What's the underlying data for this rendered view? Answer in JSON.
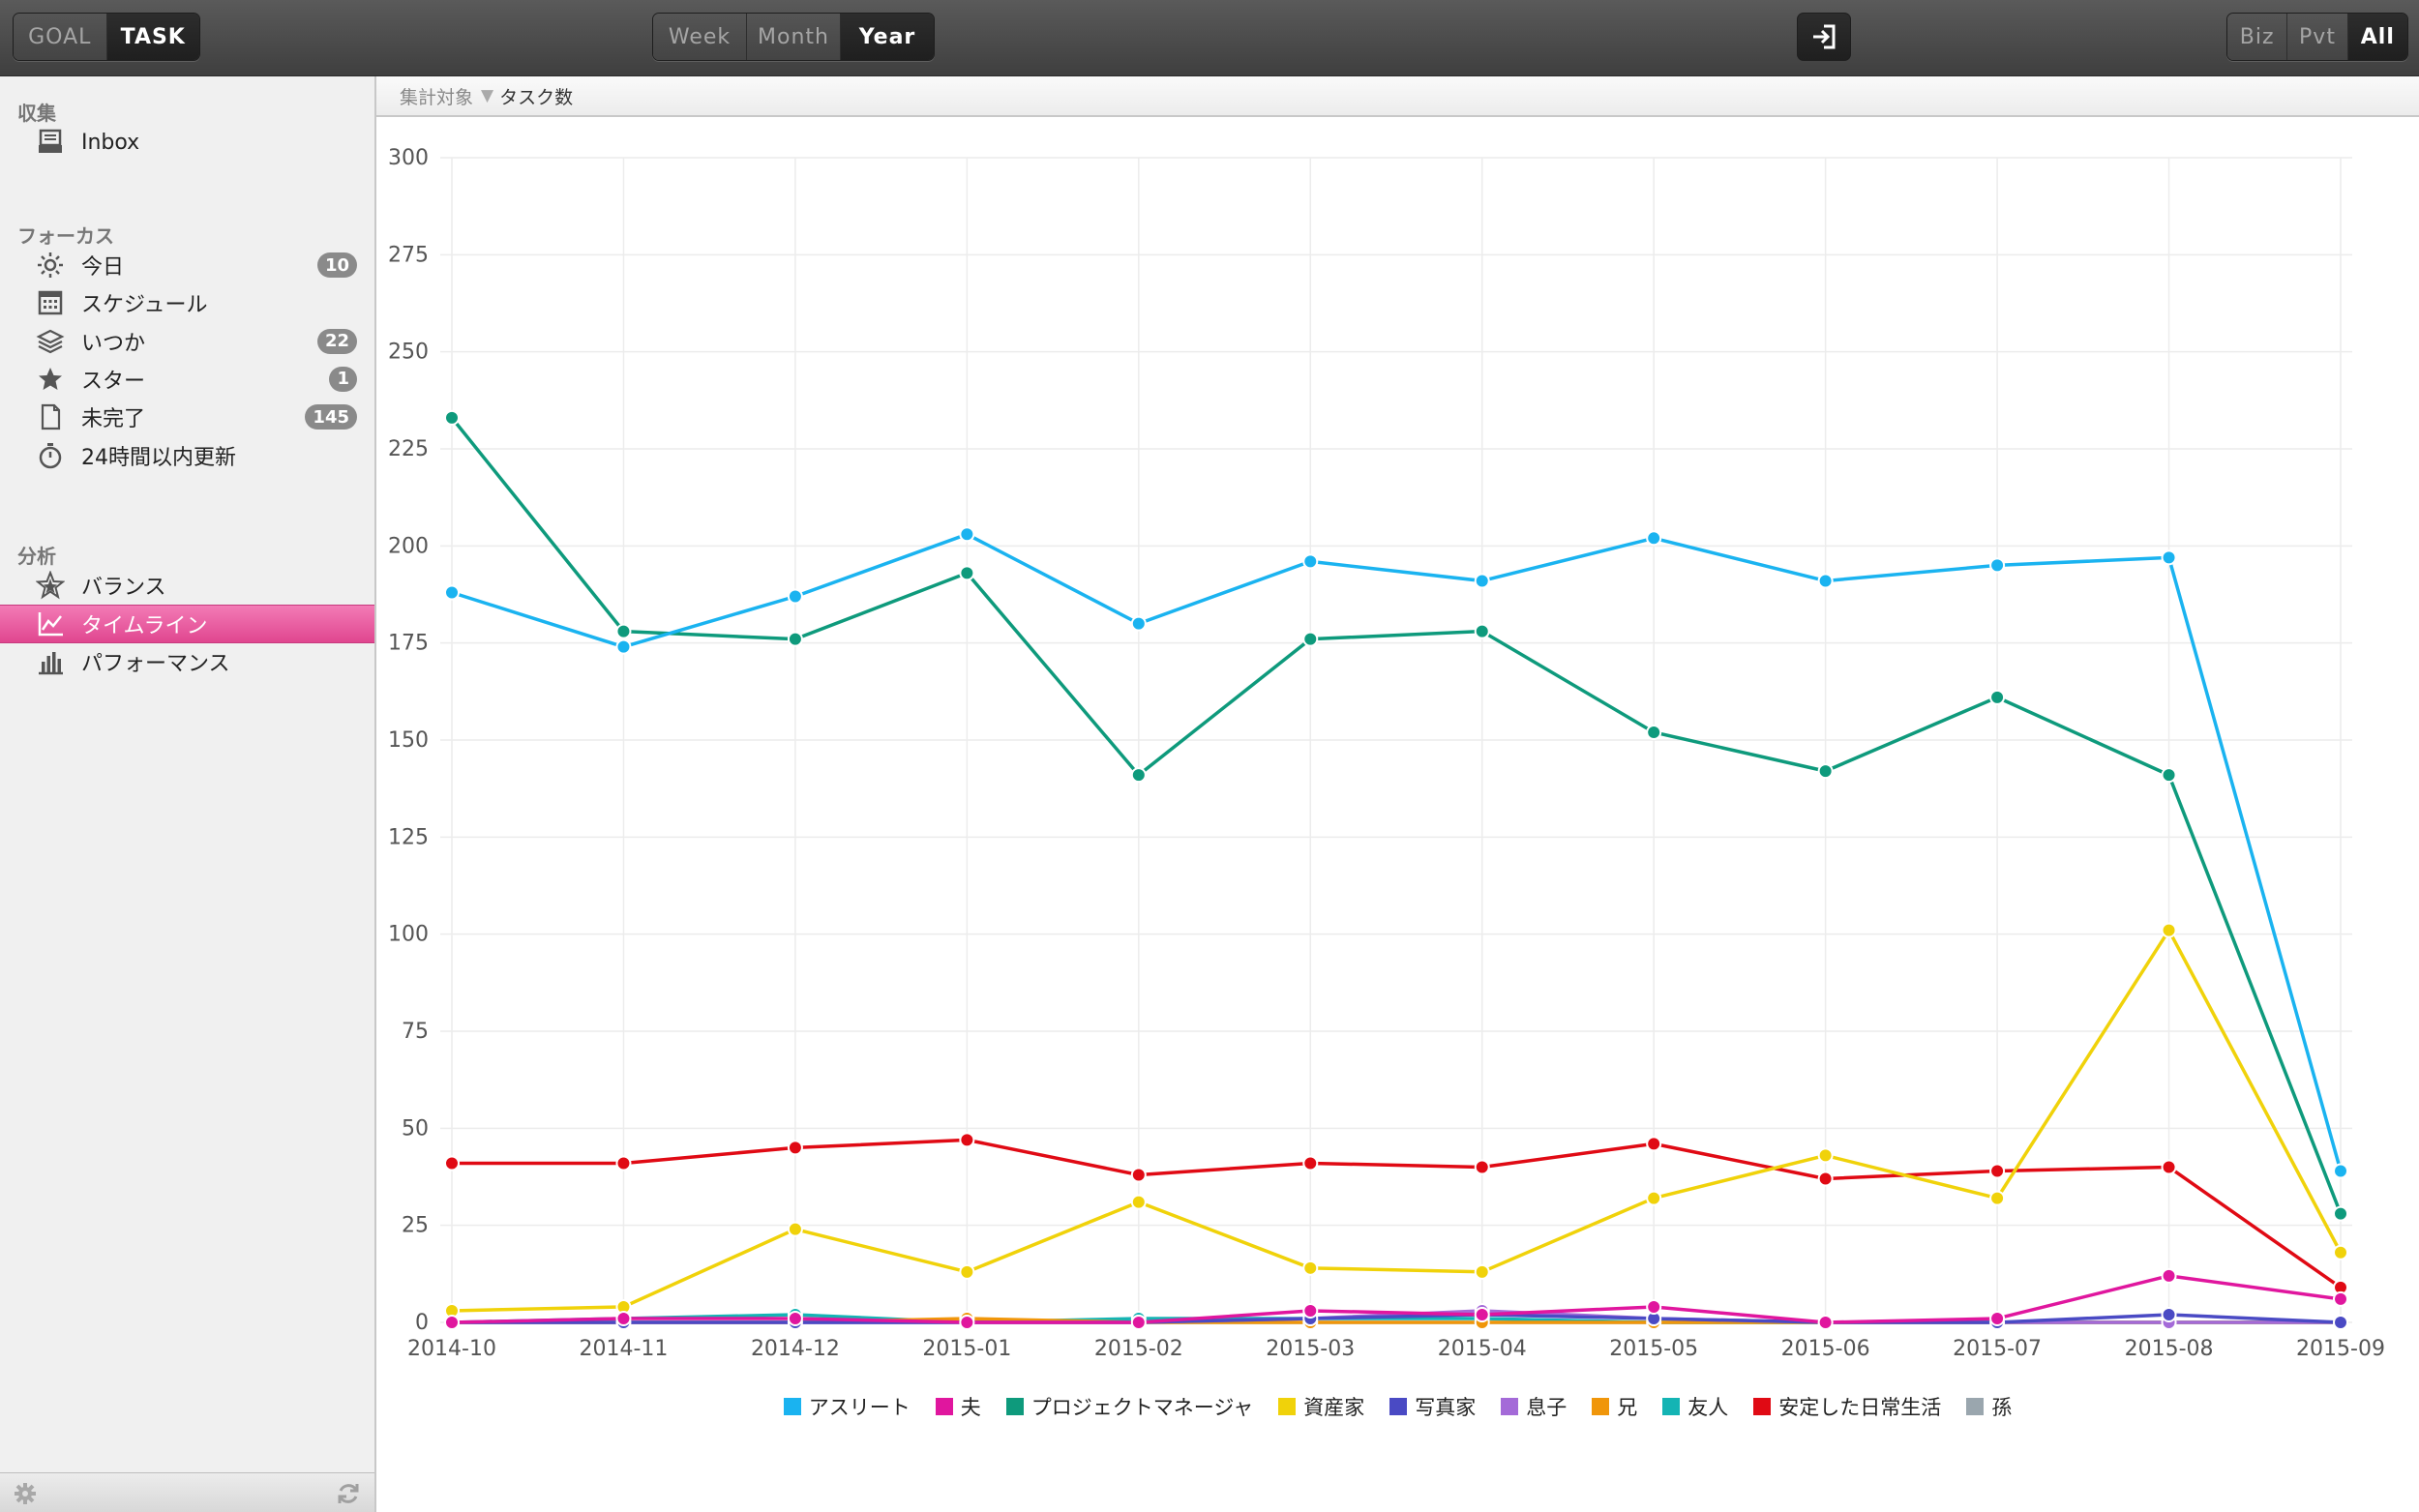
{
  "toolbar": {
    "mode_tabs": [
      "GOAL",
      "TASK"
    ],
    "mode_active": 1,
    "range_tabs": [
      "Week",
      "Month",
      "Year"
    ],
    "range_active": 2,
    "scope_tabs": [
      "Biz",
      "Pvt",
      "All"
    ],
    "scope_active": 2,
    "export_icon": "sign-in-icon"
  },
  "sidebar": {
    "sections": [
      {
        "title": "収集",
        "items": [
          {
            "label": "Inbox",
            "icon": "inbox-icon",
            "badge": ""
          }
        ]
      },
      {
        "title": "フォーカス",
        "items": [
          {
            "label": "今日",
            "icon": "sun-icon",
            "badge": "10"
          },
          {
            "label": "スケジュール",
            "icon": "calendar-icon",
            "badge": ""
          },
          {
            "label": "いつか",
            "icon": "layers-icon",
            "badge": "22"
          },
          {
            "label": "スター",
            "icon": "star-icon",
            "badge": "1"
          },
          {
            "label": "未完了",
            "icon": "document-icon",
            "badge": "145"
          },
          {
            "label": "24時間以内更新",
            "icon": "stopwatch-icon",
            "badge": ""
          }
        ]
      },
      {
        "title": "分析",
        "items": [
          {
            "label": "バランス",
            "icon": "balance-star-icon",
            "badge": ""
          },
          {
            "label": "タイムライン",
            "icon": "line-chart-icon",
            "badge": "",
            "active": true
          },
          {
            "label": "パフォーマンス",
            "icon": "bar-chart-icon",
            "badge": ""
          }
        ]
      }
    ],
    "footer_icons": [
      "gear-icon",
      "refresh-icon"
    ]
  },
  "filter": {
    "label": "集計対象",
    "arrow": "▼",
    "value": "タスク数"
  },
  "chart_data": {
    "type": "line",
    "x": [
      "2014-10",
      "2014-11",
      "2014-12",
      "2015-01",
      "2015-02",
      "2015-03",
      "2015-04",
      "2015-05",
      "2015-06",
      "2015-07",
      "2015-08",
      "2015-09"
    ],
    "ylim": [
      0,
      300
    ],
    "yticks": [
      0,
      25,
      50,
      75,
      100,
      125,
      150,
      175,
      200,
      225,
      250,
      275,
      300
    ],
    "grid": true,
    "legend_position": "bottom",
    "series": [
      {
        "name": "アスリート",
        "color": "#1ab3f0",
        "values": [
          188,
          174,
          187,
          203,
          180,
          196,
          191,
          202,
          191,
          195,
          197,
          39
        ]
      },
      {
        "name": "夫",
        "color": "#e0169e",
        "values": [
          0,
          1,
          1,
          0,
          0,
          3,
          2,
          4,
          0,
          1,
          12,
          6
        ]
      },
      {
        "name": "プロジェクトマネージャ",
        "color": "#0e9a7c",
        "values": [
          233,
          178,
          176,
          193,
          141,
          176,
          178,
          152,
          142,
          161,
          141,
          28
        ]
      },
      {
        "name": "資産家",
        "color": "#f0d20a",
        "values": [
          3,
          4,
          24,
          13,
          31,
          14,
          13,
          32,
          43,
          32,
          101,
          18
        ]
      },
      {
        "name": "写真家",
        "color": "#4a4ac4",
        "values": [
          0,
          0,
          0,
          0,
          0,
          1,
          2,
          1,
          0,
          0,
          2,
          0
        ]
      },
      {
        "name": "息子",
        "color": "#a46ad8",
        "values": [
          0,
          0,
          0,
          0,
          0,
          1,
          3,
          1,
          0,
          0,
          0,
          0
        ]
      },
      {
        "name": "兄",
        "color": "#f0960a",
        "values": [
          0,
          0,
          0,
          1,
          0,
          0,
          0,
          0,
          0,
          0,
          0,
          0
        ]
      },
      {
        "name": "友人",
        "color": "#14b4b4",
        "values": [
          0,
          1,
          2,
          0,
          1,
          1,
          1,
          0,
          0,
          0,
          0,
          0
        ]
      },
      {
        "name": "安定した日常生活",
        "color": "#e00a14",
        "values": [
          41,
          41,
          45,
          47,
          38,
          41,
          40,
          46,
          37,
          39,
          40,
          9
        ]
      },
      {
        "name": "孫",
        "color": "#9aa6ae",
        "values": [
          0,
          0,
          0,
          0,
          0,
          0,
          0,
          0,
          0,
          0,
          0,
          0
        ]
      }
    ]
  }
}
